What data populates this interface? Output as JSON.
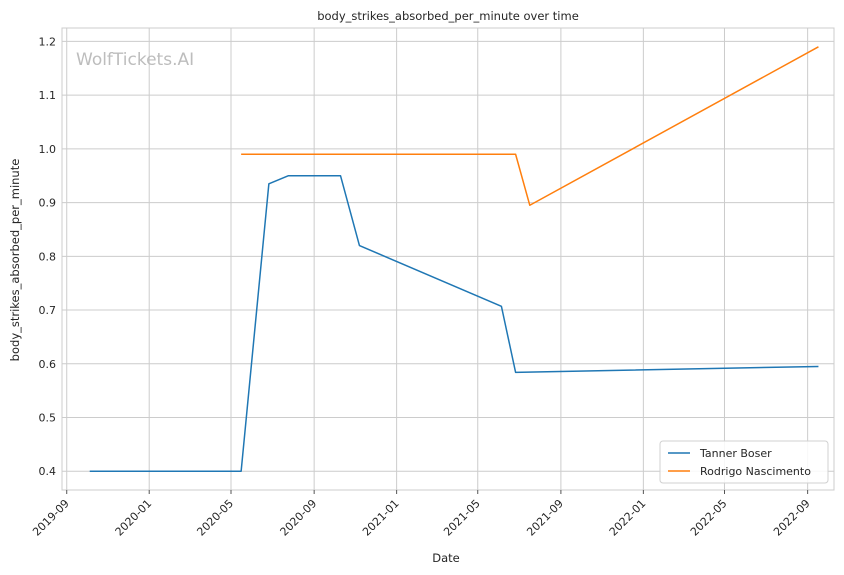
{
  "chart_data": {
    "type": "line",
    "title": "body_strikes_absorbed_per_minute over time",
    "xlabel": "Date",
    "ylabel": "body_strikes_absorbed_per_minute",
    "watermark": "WolfTickets.AI",
    "xlim": [
      "2019-08-25",
      "2022-10-10"
    ],
    "ylim": [
      0.365,
      1.225
    ],
    "xticks": [
      "2019-09",
      "2020-01",
      "2020-05",
      "2020-09",
      "2021-01",
      "2021-05",
      "2021-09",
      "2022-01",
      "2022-05",
      "2022-09"
    ],
    "yticks": [
      0.4,
      0.5,
      0.6,
      0.7,
      0.8,
      0.9,
      1.0,
      1.1,
      1.2
    ],
    "ytick_labels": [
      "0.4",
      "0.5",
      "0.6",
      "0.7",
      "0.8",
      "0.9",
      "1.0",
      "1.1",
      "1.2"
    ],
    "grid": true,
    "legend_position": "bottom-right",
    "series": [
      {
        "name": "Tanner Boser",
        "color": "#1f77b4",
        "x": [
          "2019-10-05",
          "2020-05-16",
          "2020-06-26",
          "2020-07-25",
          "2020-10-10",
          "2020-11-07",
          "2021-06-05",
          "2021-06-26",
          "2022-09-17"
        ],
        "y": [
          0.4,
          0.4,
          0.935,
          0.95,
          0.95,
          0.82,
          0.707,
          0.584,
          0.595
        ]
      },
      {
        "name": "Rodrigo Nascimento",
        "color": "#ff7f0e",
        "x": [
          "2020-05-16",
          "2021-06-26",
          "2021-07-17",
          "2022-09-17"
        ],
        "y": [
          0.99,
          0.99,
          0.895,
          1.19
        ]
      }
    ]
  }
}
